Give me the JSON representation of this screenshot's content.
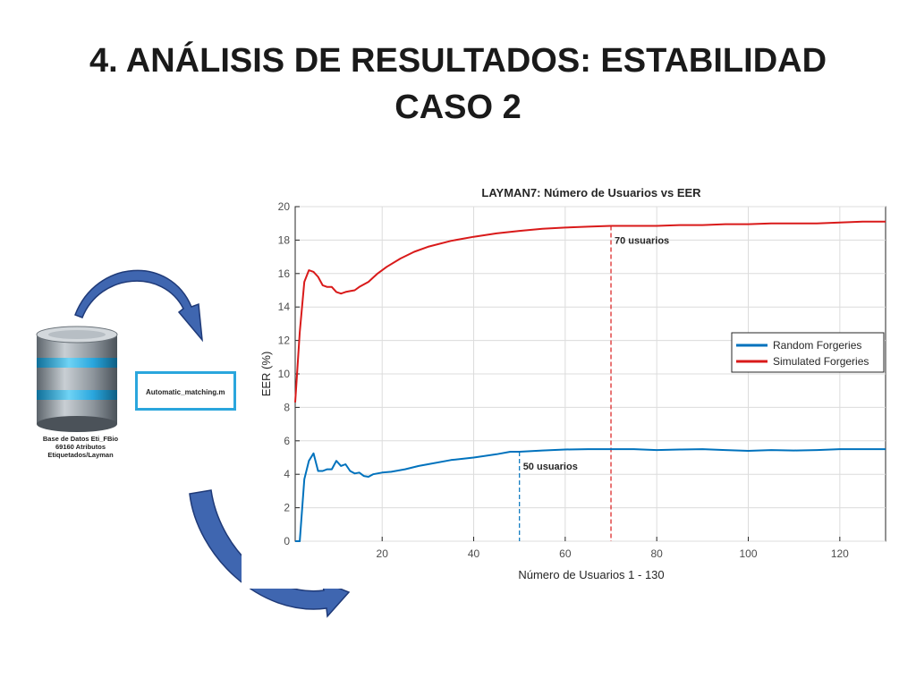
{
  "slide": {
    "title_line1": "4. ANÁLISIS DE RESULTADOS: ESTABILIDAD",
    "title_line2": "CASO 2"
  },
  "database": {
    "caption_line1": "Base de Datos Eti_FBio",
    "caption_line2": "69160 Atributos",
    "caption_line3": "Etiquetados/Layman",
    "icon": "database-icon",
    "colors": {
      "ring": "#2eaee0",
      "body": "#9aa3ab",
      "dark": "#4a525a"
    }
  },
  "script": {
    "label": "Automatic_matching.m",
    "border_color": "#2aa6dd"
  },
  "arrows": {
    "color": "#3f66b0",
    "outline": "#1f3a78",
    "icon": "curved-arrow-icon"
  },
  "chart_data": {
    "type": "line",
    "title": "LAYMAN7: Número de Usuarios vs EER",
    "xlabel": "Número de Usuarios 1 - 130",
    "ylabel": "EER (%)",
    "xlim": [
      1,
      130
    ],
    "ylim": [
      0,
      20
    ],
    "xticks": [
      20,
      40,
      60,
      80,
      100,
      120
    ],
    "yticks": [
      0,
      2,
      4,
      6,
      8,
      10,
      12,
      14,
      16,
      18,
      20
    ],
    "grid": true,
    "legend_position": "right",
    "series": [
      {
        "name": "Random Forgeries",
        "color": "#0072bd",
        "points": [
          [
            1,
            0
          ],
          [
            2,
            0
          ],
          [
            3,
            3.7
          ],
          [
            4,
            4.8
          ],
          [
            5,
            5.25
          ],
          [
            6,
            4.2
          ],
          [
            7,
            4.2
          ],
          [
            8,
            4.3
          ],
          [
            9,
            4.3
          ],
          [
            10,
            4.8
          ],
          [
            11,
            4.5
          ],
          [
            12,
            4.6
          ],
          [
            13,
            4.2
          ],
          [
            14,
            4.05
          ],
          [
            15,
            4.1
          ],
          [
            16,
            3.9
          ],
          [
            17,
            3.85
          ],
          [
            18,
            4.0
          ],
          [
            20,
            4.1
          ],
          [
            22,
            4.15
          ],
          [
            25,
            4.3
          ],
          [
            28,
            4.5
          ],
          [
            30,
            4.6
          ],
          [
            35,
            4.85
          ],
          [
            40,
            5.0
          ],
          [
            45,
            5.2
          ],
          [
            48,
            5.35
          ],
          [
            50,
            5.35
          ],
          [
            55,
            5.42
          ],
          [
            60,
            5.48
          ],
          [
            65,
            5.5
          ],
          [
            70,
            5.5
          ],
          [
            75,
            5.5
          ],
          [
            80,
            5.45
          ],
          [
            85,
            5.48
          ],
          [
            90,
            5.5
          ],
          [
            95,
            5.45
          ],
          [
            100,
            5.4
          ],
          [
            105,
            5.45
          ],
          [
            110,
            5.42
          ],
          [
            115,
            5.45
          ],
          [
            120,
            5.5
          ],
          [
            125,
            5.5
          ],
          [
            130,
            5.5
          ]
        ]
      },
      {
        "name": "Simulated Forgeries",
        "color": "#d91a1a",
        "points": [
          [
            1,
            8.3
          ],
          [
            2,
            12.5
          ],
          [
            3,
            15.5
          ],
          [
            4,
            16.2
          ],
          [
            5,
            16.1
          ],
          [
            6,
            15.8
          ],
          [
            7,
            15.3
          ],
          [
            8,
            15.2
          ],
          [
            9,
            15.2
          ],
          [
            10,
            14.9
          ],
          [
            11,
            14.8
          ],
          [
            12,
            14.9
          ],
          [
            13,
            14.95
          ],
          [
            14,
            15.0
          ],
          [
            15,
            15.2
          ],
          [
            17,
            15.5
          ],
          [
            19,
            16.0
          ],
          [
            21,
            16.4
          ],
          [
            24,
            16.9
          ],
          [
            27,
            17.3
          ],
          [
            30,
            17.6
          ],
          [
            35,
            17.95
          ],
          [
            40,
            18.2
          ],
          [
            45,
            18.4
          ],
          [
            50,
            18.55
          ],
          [
            55,
            18.68
          ],
          [
            60,
            18.75
          ],
          [
            65,
            18.8
          ],
          [
            70,
            18.85
          ],
          [
            75,
            18.85
          ],
          [
            80,
            18.85
          ],
          [
            85,
            18.9
          ],
          [
            90,
            18.9
          ],
          [
            95,
            18.95
          ],
          [
            100,
            18.95
          ],
          [
            105,
            19.0
          ],
          [
            110,
            19.0
          ],
          [
            115,
            19.0
          ],
          [
            120,
            19.05
          ],
          [
            125,
            19.1
          ],
          [
            130,
            19.1
          ]
        ]
      }
    ],
    "annotations": [
      {
        "text": "70 usuarios",
        "x": 70,
        "series": "Simulated Forgeries",
        "y_top": 18.85,
        "color": "#d91a1a"
      },
      {
        "text": "50 usuarios",
        "x": 50,
        "series": "Random Forgeries",
        "y_top": 5.35,
        "color": "#0072bd"
      }
    ]
  }
}
